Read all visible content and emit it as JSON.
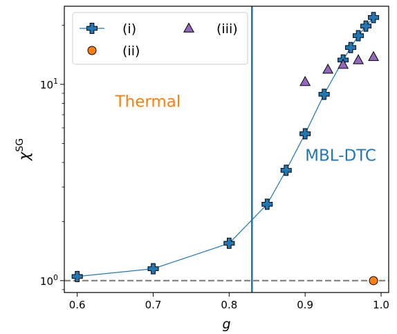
{
  "chart_data": {
    "type": "scatter",
    "x_scale": "linear",
    "y_scale": "log",
    "xlim": [
      0.583,
      1.01
    ],
    "ylim": [
      0.87,
      25
    ],
    "xlabel": "g",
    "ylabel_base": "χ",
    "ylabel_sup": "SG",
    "x_ticks": [
      0.6,
      0.7,
      0.8,
      0.9,
      1.0
    ],
    "x_tick_labels": [
      "0.6",
      "0.7",
      "0.8",
      "0.9",
      "1.0"
    ],
    "y_ticks": [
      1,
      10
    ],
    "y_tick_label_base": "10",
    "y_tick_label_exponents": [
      "0",
      "1"
    ],
    "series": [
      {
        "name": "(i)",
        "marker": "plus",
        "line": true,
        "color": "#1f77b4",
        "x": [
          0.6,
          0.7,
          0.8,
          0.85,
          0.875,
          0.9,
          0.925,
          0.95,
          0.96,
          0.97,
          0.98,
          0.99
        ],
        "y": [
          1.05,
          1.15,
          1.55,
          2.45,
          3.65,
          5.6,
          8.9,
          13.3,
          15.4,
          17.7,
          19.8,
          21.9
        ]
      },
      {
        "name": "(ii)",
        "marker": "circle",
        "line": false,
        "color": "#ff7f0e",
        "x": [
          0.99
        ],
        "y": [
          1.0
        ]
      },
      {
        "name": "(iii)",
        "marker": "triangle",
        "line": false,
        "color": "#9467bd",
        "x": [
          0.9,
          0.93,
          0.95,
          0.97,
          0.99
        ],
        "y": [
          10.3,
          11.9,
          12.6,
          13.3,
          13.8
        ]
      }
    ],
    "vline": {
      "x": 0.83,
      "color": "#1f77b4"
    },
    "hline": {
      "y": 1.0,
      "color": "#808080",
      "style": "dashed"
    },
    "annotations": [
      {
        "text": "Thermal",
        "x": 0.65,
        "y": 8.1,
        "color": "#ff7f0e"
      },
      {
        "text": "MBL-DTC",
        "x": 0.9,
        "y": 4.3,
        "color": "#1f77b4"
      }
    ],
    "legend": {
      "position": "top-left",
      "columns": 2
    },
    "grid": false
  }
}
